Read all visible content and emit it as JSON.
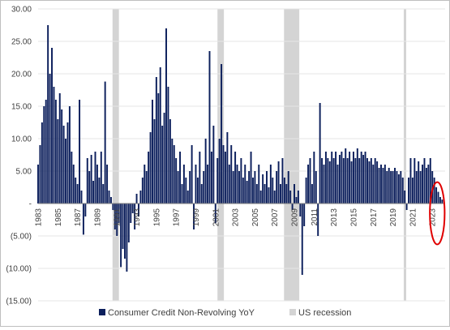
{
  "chart_data": {
    "type": "bar",
    "title": "",
    "xlabel": "",
    "ylabel": "",
    "ylim": [
      -15,
      30
    ],
    "y_ticks": [
      "30.00",
      "25.00",
      "20.00",
      "15.00",
      "10.00",
      "5.00",
      "-",
      "(5.00)",
      "(10.00)",
      "(15.00)"
    ],
    "y_tick_values": [
      30,
      25,
      20,
      15,
      10,
      5,
      0,
      -5,
      -10,
      -15
    ],
    "x_range": [
      1983,
      2024.3
    ],
    "x_tick_labels": [
      "1983",
      "1985",
      "1987",
      "1989",
      "1991",
      "1993",
      "1995",
      "1997",
      "1999",
      "2001",
      "2003",
      "2005",
      "2007",
      "2009",
      "2011",
      "2013",
      "2015",
      "2017",
      "2019",
      "2021",
      "2023"
    ],
    "x_tick_years": [
      1983,
      1985,
      1987,
      1989,
      1991,
      1993,
      1995,
      1997,
      1999,
      2001,
      2003,
      2005,
      2007,
      2009,
      2011,
      2013,
      2015,
      2017,
      2019,
      2021,
      2023
    ],
    "grid": "horizontal",
    "legend_position": "bottom",
    "series": [
      {
        "name": "Consumer Credit Non-Revolving YoY",
        "color": "#0c1f5c",
        "points": [
          [
            1983.0,
            6.0
          ],
          [
            1983.2,
            9.0
          ],
          [
            1983.4,
            12.5
          ],
          [
            1983.6,
            15.0
          ],
          [
            1983.8,
            16.0
          ],
          [
            1984.0,
            27.5
          ],
          [
            1984.2,
            20.0
          ],
          [
            1984.4,
            24.0
          ],
          [
            1984.6,
            18.0
          ],
          [
            1984.8,
            16.0
          ],
          [
            1985.0,
            13.0
          ],
          [
            1985.2,
            17.0
          ],
          [
            1985.4,
            14.5
          ],
          [
            1985.6,
            12.0
          ],
          [
            1985.8,
            10.0
          ],
          [
            1986.0,
            12.5
          ],
          [
            1986.2,
            15.0
          ],
          [
            1986.4,
            8.0
          ],
          [
            1986.6,
            6.0
          ],
          [
            1986.8,
            4.0
          ],
          [
            1987.0,
            3.0
          ],
          [
            1987.2,
            16.0
          ],
          [
            1987.4,
            2.0
          ],
          [
            1987.6,
            -4.8
          ],
          [
            1987.8,
            -2.0
          ],
          [
            1988.0,
            7.0
          ],
          [
            1988.2,
            5.0
          ],
          [
            1988.4,
            7.5
          ],
          [
            1988.6,
            3.5
          ],
          [
            1988.8,
            8.0
          ],
          [
            1989.0,
            6.0
          ],
          [
            1989.2,
            4.0
          ],
          [
            1989.4,
            8.0
          ],
          [
            1989.6,
            3.0
          ],
          [
            1989.8,
            18.8
          ],
          [
            1990.0,
            6.0
          ],
          [
            1990.2,
            2.0
          ],
          [
            1990.4,
            1.0
          ],
          [
            1990.6,
            -1.0
          ],
          [
            1990.8,
            -4.0
          ],
          [
            1991.0,
            -5.0
          ],
          [
            1991.2,
            -3.0
          ],
          [
            1991.4,
            -9.8
          ],
          [
            1991.6,
            -7.0
          ],
          [
            1991.8,
            -8.5
          ],
          [
            1992.0,
            -10.5
          ],
          [
            1992.2,
            -6.0
          ],
          [
            1992.4,
            -3.0
          ],
          [
            1992.6,
            -1.5
          ],
          [
            1992.8,
            -4.0
          ],
          [
            1993.0,
            1.5
          ],
          [
            1993.2,
            -2.0
          ],
          [
            1993.4,
            2.0
          ],
          [
            1993.6,
            4.0
          ],
          [
            1993.8,
            6.0
          ],
          [
            1994.0,
            5.0
          ],
          [
            1994.2,
            8.0
          ],
          [
            1994.4,
            11.0
          ],
          [
            1994.6,
            16.0
          ],
          [
            1994.8,
            13.0
          ],
          [
            1995.0,
            19.5
          ],
          [
            1995.2,
            17.0
          ],
          [
            1995.4,
            21.0
          ],
          [
            1995.6,
            12.0
          ],
          [
            1995.8,
            14.0
          ],
          [
            1996.0,
            27.0
          ],
          [
            1996.2,
            18.0
          ],
          [
            1996.4,
            13.0
          ],
          [
            1996.6,
            10.0
          ],
          [
            1996.8,
            9.0
          ],
          [
            1997.0,
            7.0
          ],
          [
            1997.2,
            5.0
          ],
          [
            1997.4,
            8.0
          ],
          [
            1997.6,
            3.0
          ],
          [
            1997.8,
            6.0
          ],
          [
            1998.0,
            4.0
          ],
          [
            1998.2,
            2.0
          ],
          [
            1998.4,
            5.0
          ],
          [
            1998.6,
            9.0
          ],
          [
            1998.8,
            -4.0
          ],
          [
            1999.0,
            6.0
          ],
          [
            1999.2,
            4.0
          ],
          [
            1999.4,
            8.0
          ],
          [
            1999.6,
            3.0
          ],
          [
            1999.8,
            5.0
          ],
          [
            2000.0,
            10.0
          ],
          [
            2000.2,
            6.0
          ],
          [
            2000.4,
            23.5
          ],
          [
            2000.6,
            8.0
          ],
          [
            2000.8,
            12.0
          ],
          [
            2001.0,
            -3.0
          ],
          [
            2001.2,
            7.0
          ],
          [
            2001.4,
            10.0
          ],
          [
            2001.6,
            21.5
          ],
          [
            2001.8,
            9.0
          ],
          [
            2002.0,
            8.0
          ],
          [
            2002.2,
            11.0
          ],
          [
            2002.4,
            6.0
          ],
          [
            2002.6,
            9.0
          ],
          [
            2002.8,
            5.0
          ],
          [
            2003.0,
            8.0
          ],
          [
            2003.2,
            6.0
          ],
          [
            2003.4,
            5.0
          ],
          [
            2003.6,
            7.0
          ],
          [
            2003.8,
            4.0
          ],
          [
            2004.0,
            6.0
          ],
          [
            2004.2,
            3.5
          ],
          [
            2004.4,
            5.0
          ],
          [
            2004.6,
            8.0
          ],
          [
            2004.8,
            4.0
          ],
          [
            2005.0,
            5.0
          ],
          [
            2005.2,
            3.0
          ],
          [
            2005.4,
            6.0
          ],
          [
            2005.6,
            2.0
          ],
          [
            2005.8,
            4.5
          ],
          [
            2006.0,
            3.0
          ],
          [
            2006.2,
            5.0
          ],
          [
            2006.4,
            2.5
          ],
          [
            2006.6,
            6.0
          ],
          [
            2006.8,
            4.0
          ],
          [
            2007.0,
            2.0
          ],
          [
            2007.2,
            5.0
          ],
          [
            2007.4,
            6.5
          ],
          [
            2007.6,
            3.0
          ],
          [
            2007.8,
            7.0
          ],
          [
            2008.0,
            4.0
          ],
          [
            2008.2,
            3.0
          ],
          [
            2008.4,
            5.0
          ],
          [
            2008.6,
            2.0
          ],
          [
            2008.8,
            -1.0
          ],
          [
            2009.0,
            3.0
          ],
          [
            2009.2,
            1.0
          ],
          [
            2009.4,
            2.0
          ],
          [
            2009.6,
            -2.0
          ],
          [
            2009.8,
            -11.0
          ],
          [
            2010.0,
            -3.5
          ],
          [
            2010.2,
            4.0
          ],
          [
            2010.4,
            6.0
          ],
          [
            2010.6,
            7.0
          ],
          [
            2010.8,
            3.0
          ],
          [
            2011.0,
            8.0
          ],
          [
            2011.2,
            5.0
          ],
          [
            2011.4,
            -5.0
          ],
          [
            2011.6,
            15.5
          ],
          [
            2011.8,
            7.0
          ],
          [
            2012.0,
            6.0
          ],
          [
            2012.2,
            8.0
          ],
          [
            2012.4,
            7.0
          ],
          [
            2012.6,
            6.5
          ],
          [
            2012.8,
            8.0
          ],
          [
            2013.0,
            7.0
          ],
          [
            2013.2,
            8.0
          ],
          [
            2013.4,
            6.0
          ],
          [
            2013.6,
            7.5
          ],
          [
            2013.8,
            8.0
          ],
          [
            2014.0,
            7.0
          ],
          [
            2014.2,
            8.5
          ],
          [
            2014.4,
            7.0
          ],
          [
            2014.6,
            8.0
          ],
          [
            2014.8,
            6.5
          ],
          [
            2015.0,
            8.0
          ],
          [
            2015.2,
            7.0
          ],
          [
            2015.4,
            8.5
          ],
          [
            2015.6,
            7.0
          ],
          [
            2015.8,
            8.0
          ],
          [
            2016.0,
            7.5
          ],
          [
            2016.2,
            8.0
          ],
          [
            2016.4,
            7.0
          ],
          [
            2016.6,
            6.5
          ],
          [
            2016.8,
            7.0
          ],
          [
            2017.0,
            6.0
          ],
          [
            2017.2,
            7.0
          ],
          [
            2017.4,
            6.5
          ],
          [
            2017.6,
            5.5
          ],
          [
            2017.8,
            6.0
          ],
          [
            2018.0,
            5.5
          ],
          [
            2018.2,
            6.0
          ],
          [
            2018.4,
            5.0
          ],
          [
            2018.6,
            5.5
          ],
          [
            2018.8,
            5.0
          ],
          [
            2019.0,
            5.0
          ],
          [
            2019.2,
            5.5
          ],
          [
            2019.4,
            5.0
          ],
          [
            2019.6,
            4.5
          ],
          [
            2019.8,
            5.0
          ],
          [
            2020.0,
            4.0
          ],
          [
            2020.2,
            2.0
          ],
          [
            2020.4,
            -1.0
          ],
          [
            2020.6,
            4.0
          ],
          [
            2020.8,
            7.0
          ],
          [
            2021.0,
            4.0
          ],
          [
            2021.2,
            7.0
          ],
          [
            2021.4,
            5.0
          ],
          [
            2021.6,
            6.5
          ],
          [
            2021.8,
            5.0
          ],
          [
            2022.0,
            6.0
          ],
          [
            2022.2,
            7.0
          ],
          [
            2022.4,
            5.5
          ],
          [
            2022.6,
            6.0
          ],
          [
            2022.8,
            7.0
          ],
          [
            2023.0,
            5.0
          ],
          [
            2023.2,
            4.0
          ],
          [
            2023.4,
            2.5
          ],
          [
            2023.6,
            1.8
          ],
          [
            2023.8,
            1.0
          ],
          [
            2024.0,
            0.6
          ]
        ]
      },
      {
        "name": "US recession",
        "color": "#d4d4d4",
        "periods": [
          [
            1990.55,
            1991.2
          ],
          [
            2001.2,
            2001.85
          ],
          [
            2007.95,
            2009.5
          ],
          [
            2020.1,
            2020.35
          ]
        ]
      }
    ],
    "annotations": [
      {
        "type": "ellipse",
        "color": "#e00000",
        "x_center": 2023.5,
        "y_center": -1.5,
        "x_halfwidth": 0.75,
        "y_halfwidth": 4.8
      }
    ]
  }
}
